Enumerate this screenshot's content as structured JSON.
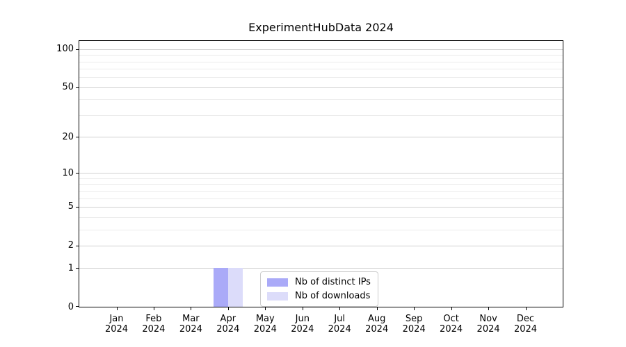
{
  "chart_data": {
    "type": "bar",
    "title": "ExperimentHubData 2024",
    "xlabel": "",
    "ylabel": "",
    "y_scale": "log1p",
    "ylim": [
      0,
      116
    ],
    "grid": true,
    "legend_position": "lower center",
    "yticks": [
      {
        "value": 0,
        "label": "0"
      },
      {
        "value": 1,
        "label": "1"
      },
      {
        "value": 2,
        "label": "2"
      },
      {
        "value": 5,
        "label": "5"
      },
      {
        "value": 10,
        "label": "10"
      },
      {
        "value": 20,
        "label": "20"
      },
      {
        "value": 50,
        "label": "50"
      },
      {
        "value": 100,
        "label": "100"
      }
    ],
    "y_minor_gridlines": [
      3,
      4,
      6,
      7,
      8,
      9,
      30,
      40,
      60,
      70,
      80,
      90
    ],
    "categories": [
      {
        "month": "Jan",
        "year": "2024"
      },
      {
        "month": "Feb",
        "year": "2024"
      },
      {
        "month": "Mar",
        "year": "2024"
      },
      {
        "month": "Apr",
        "year": "2024"
      },
      {
        "month": "May",
        "year": "2024"
      },
      {
        "month": "Jun",
        "year": "2024"
      },
      {
        "month": "Jul",
        "year": "2024"
      },
      {
        "month": "Aug",
        "year": "2024"
      },
      {
        "month": "Sep",
        "year": "2024"
      },
      {
        "month": "Oct",
        "year": "2024"
      },
      {
        "month": "Nov",
        "year": "2024"
      },
      {
        "month": "Dec",
        "year": "2024"
      }
    ],
    "series": [
      {
        "name": "Nb of distinct IPs",
        "color": "#aaaaf8",
        "values": [
          0,
          0,
          0,
          1,
          0,
          0,
          0,
          0,
          0,
          0,
          0,
          0
        ]
      },
      {
        "name": "Nb of downloads",
        "color": "#dcdcfa",
        "values": [
          0,
          0,
          0,
          1,
          0,
          0,
          0,
          0,
          0,
          0,
          0,
          0
        ]
      }
    ]
  },
  "colors": {
    "background": "#ffffff",
    "spine": "#000000",
    "text": "#000000",
    "grid_major": "#d0d0d0",
    "grid_minor": "#ebebeb",
    "legend_border": "#cccccc",
    "bar_distinct_ips": "#aaaaf8",
    "bar_downloads": "#dcdcfa"
  }
}
